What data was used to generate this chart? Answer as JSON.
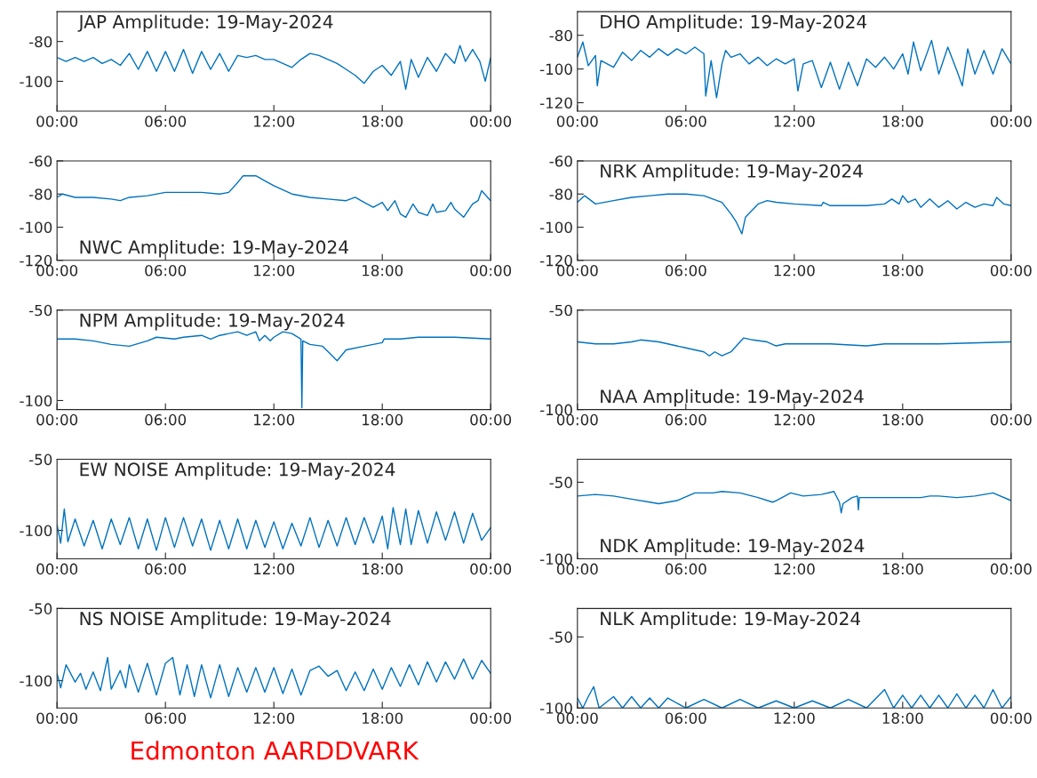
{
  "chart_data": [
    {
      "type": "line",
      "title": "JAP Amplitude: 19-May-2024",
      "xlim": [
        0,
        24
      ],
      "xticks": [
        {
          "value": 0,
          "label": "00:00"
        },
        {
          "value": 6,
          "label": "06:00"
        },
        {
          "value": 12,
          "label": "12:00"
        },
        {
          "value": 18,
          "label": "18:00"
        },
        {
          "value": 24,
          "label": "00:00"
        }
      ],
      "ylim": [
        -115,
        -65
      ],
      "yticks": [
        -100,
        -80
      ],
      "series": [
        {
          "color": "#0072bd",
          "x": [
            0,
            0.5,
            1,
            1.5,
            2,
            2.5,
            3,
            3.5,
            4,
            4.5,
            5,
            5.5,
            6,
            6.5,
            7,
            7.5,
            8,
            8.5,
            9,
            9.5,
            10,
            10.5,
            11,
            11.5,
            12,
            12.5,
            13,
            13.5,
            14,
            14.5,
            15,
            15.5,
            16,
            16.5,
            17,
            17.5,
            18,
            18.5,
            19,
            19.3,
            19.6,
            20,
            20.5,
            21,
            21.5,
            22,
            22.3,
            22.6,
            23,
            23.4,
            23.7,
            24
          ],
          "values": [
            -88,
            -90,
            -88,
            -90,
            -88,
            -91,
            -89,
            -92,
            -86,
            -94,
            -85,
            -95,
            -85,
            -95,
            -84,
            -96,
            -85,
            -94,
            -86,
            -95,
            -87,
            -88,
            -87,
            -89,
            -89,
            -91,
            -93,
            -89,
            -86,
            -87,
            -89,
            -91,
            -94,
            -97,
            -101,
            -95,
            -92,
            -97,
            -90,
            -104,
            -89,
            -98,
            -88,
            -95,
            -86,
            -91,
            -82,
            -90,
            -84,
            -90,
            -100,
            -88
          ]
        }
      ]
    },
    {
      "type": "line",
      "title": "DHO Amplitude: 19-May-2024",
      "xlim": [
        0,
        24
      ],
      "xticks": [
        {
          "value": 0,
          "label": "00:00"
        },
        {
          "value": 6,
          "label": "06:00"
        },
        {
          "value": 12,
          "label": "12:00"
        },
        {
          "value": 18,
          "label": "18:00"
        },
        {
          "value": 24,
          "label": "00:00"
        }
      ],
      "ylim": [
        -125,
        -66
      ],
      "yticks": [
        -120,
        -100,
        -80
      ],
      "series": [
        {
          "color": "#0072bd",
          "x": [
            0,
            0.3,
            0.6,
            1,
            1.1,
            1.3,
            2,
            2.5,
            3,
            3.5,
            4,
            4.5,
            5,
            5.5,
            6,
            6.5,
            7,
            7.1,
            7.4,
            7.7,
            8,
            8.2,
            8.5,
            9,
            9.5,
            10,
            10.5,
            11,
            11.5,
            12,
            12.2,
            12.5,
            13,
            13.5,
            14,
            14.5,
            15,
            15.5,
            16,
            16.5,
            17,
            17.5,
            18,
            18.3,
            18.6,
            19,
            19.6,
            20,
            20.5,
            21,
            21.3,
            21.6,
            22,
            22.5,
            23,
            23.5,
            24
          ],
          "values": [
            -93,
            -84,
            -98,
            -92,
            -110,
            -95,
            -99,
            -90,
            -95,
            -89,
            -93,
            -88,
            -92,
            -88,
            -91,
            -87,
            -91,
            -116,
            -95,
            -117,
            -97,
            -89,
            -93,
            -91,
            -97,
            -93,
            -98,
            -94,
            -97,
            -94,
            -113,
            -97,
            -95,
            -111,
            -96,
            -112,
            -96,
            -110,
            -94,
            -99,
            -93,
            -100,
            -91,
            -103,
            -84,
            -101,
            -83,
            -103,
            -87,
            -101,
            -110,
            -88,
            -103,
            -89,
            -103,
            -88,
            -97
          ]
        }
      ]
    },
    {
      "type": "line",
      "title": "NWC Amplitude: 19-May-2024",
      "xlim": [
        0,
        24
      ],
      "xticks": [
        {
          "value": 0,
          "label": "00:00"
        },
        {
          "value": 6,
          "label": "06:00"
        },
        {
          "value": 12,
          "label": "12:00"
        },
        {
          "value": 18,
          "label": "18:00"
        },
        {
          "value": 24,
          "label": "00:00"
        }
      ],
      "ylim": [
        -120,
        -60
      ],
      "yticks": [
        -120,
        -100,
        -80,
        -60
      ],
      "series": [
        {
          "color": "#0072bd",
          "x": [
            0,
            0.3,
            1,
            2,
            3,
            3.5,
            4,
            5,
            6,
            7,
            8,
            9,
            9.5,
            10,
            10.3,
            11,
            11.5,
            12,
            13,
            14,
            15,
            16,
            16.5,
            17,
            17.5,
            18,
            18.3,
            18.7,
            19,
            19.3,
            19.7,
            20,
            20.5,
            20.8,
            21,
            21.5,
            21.8,
            22,
            22.5,
            23,
            23.3,
            23.5,
            24
          ],
          "values": [
            -82,
            -80,
            -82,
            -82,
            -83,
            -84,
            -82,
            -81,
            -79,
            -79,
            -79,
            -80,
            -79,
            -73,
            -69,
            -69,
            -72,
            -75,
            -80,
            -82,
            -83,
            -84,
            -82,
            -85,
            -88,
            -85,
            -90,
            -84,
            -92,
            -94,
            -86,
            -91,
            -93,
            -86,
            -91,
            -90,
            -85,
            -89,
            -94,
            -86,
            -84,
            -78,
            -84
          ]
        }
      ]
    },
    {
      "type": "line",
      "title": "NRK Amplitude: 19-May-2024",
      "xlim": [
        0,
        24
      ],
      "xticks": [
        {
          "value": 0,
          "label": "00:00"
        },
        {
          "value": 6,
          "label": "06:00"
        },
        {
          "value": 12,
          "label": "12:00"
        },
        {
          "value": 18,
          "label": "18:00"
        },
        {
          "value": 24,
          "label": "00:00"
        }
      ],
      "ylim": [
        -120,
        -60
      ],
      "yticks": [
        -120,
        -100,
        -80,
        -60
      ],
      "series": [
        {
          "color": "#0072bd",
          "x": [
            0,
            0.4,
            1,
            2,
            3,
            4,
            5,
            6,
            7,
            8,
            8.5,
            8.8,
            9.1,
            9.3,
            10,
            10.5,
            11,
            12,
            13.5,
            13.6,
            14,
            15,
            16,
            17,
            17.4,
            17.8,
            18,
            18.3,
            18.7,
            19,
            19.5,
            20,
            20.5,
            21,
            21.5,
            22,
            22.5,
            23,
            23.2,
            23.6,
            24
          ],
          "values": [
            -85,
            -81,
            -86,
            -84,
            -82,
            -81,
            -80,
            -80,
            -81,
            -85,
            -92,
            -97,
            -104,
            -94,
            -86,
            -84,
            -85,
            -86,
            -87,
            -85,
            -87,
            -87,
            -87,
            -86,
            -83,
            -86,
            -81,
            -85,
            -83,
            -88,
            -83,
            -88,
            -84,
            -89,
            -85,
            -88,
            -86,
            -87,
            -82,
            -86,
            -87
          ]
        }
      ]
    },
    {
      "type": "line",
      "title": "NPM Amplitude: 19-May-2024",
      "xlim": [
        0,
        24
      ],
      "xticks": [
        {
          "value": 0,
          "label": "00:00"
        },
        {
          "value": 6,
          "label": "06:00"
        },
        {
          "value": 12,
          "label": "12:00"
        },
        {
          "value": 18,
          "label": "18:00"
        },
        {
          "value": 24,
          "label": "00:00"
        }
      ],
      "ylim": [
        -105,
        -50
      ],
      "yticks": [
        -100,
        -50
      ],
      "series": [
        {
          "color": "#0072bd",
          "x": [
            0,
            1,
            2,
            3,
            4,
            5,
            5.5,
            6.5,
            7,
            8,
            8.5,
            9,
            10,
            10.5,
            11,
            11.2,
            11.5,
            11.8,
            12,
            12.5,
            13,
            13.5,
            13.55,
            13.6,
            14,
            14.7,
            15.2,
            15.5,
            16,
            17,
            18,
            18.1,
            19,
            20,
            22,
            24
          ],
          "values": [
            -66,
            -66,
            -67,
            -69,
            -70,
            -67,
            -65,
            -66,
            -65,
            -64,
            -66,
            -64,
            -62,
            -64,
            -62,
            -67,
            -64,
            -67,
            -65,
            -62,
            -63,
            -66,
            -104,
            -67,
            -69,
            -70,
            -75,
            -78,
            -72,
            -70,
            -68,
            -66,
            -66,
            -65,
            -65,
            -66
          ]
        }
      ]
    },
    {
      "type": "line",
      "title": "NAA Amplitude: 19-May-2024",
      "xlim": [
        0,
        24
      ],
      "xticks": [
        {
          "value": 0,
          "label": "00:00"
        },
        {
          "value": 6,
          "label": "06:00"
        },
        {
          "value": 12,
          "label": "12:00"
        },
        {
          "value": 18,
          "label": "18:00"
        },
        {
          "value": 24,
          "label": "00:00"
        }
      ],
      "ylim": [
        -100,
        -50
      ],
      "yticks": [
        -100,
        -50
      ],
      "series": [
        {
          "color": "#0072bd",
          "x": [
            0,
            1,
            2,
            3,
            3.5,
            4.5,
            5.5,
            6,
            6.5,
            7,
            7.3,
            7.6,
            8,
            8.5,
            8.8,
            9.2,
            9.7,
            10.5,
            11,
            11.5,
            13,
            14,
            16,
            17,
            20,
            24
          ],
          "values": [
            -66,
            -67,
            -67,
            -66,
            -65,
            -66,
            -68,
            -69,
            -70,
            -71,
            -73,
            -71,
            -73,
            -71,
            -68,
            -64,
            -65,
            -66,
            -68,
            -67,
            -67,
            -67,
            -68,
            -67,
            -67,
            -66
          ]
        }
      ]
    },
    {
      "type": "line",
      "title": "EW NOISE Amplitude: 19-May-2024",
      "xlim": [
        0,
        24
      ],
      "xticks": [
        {
          "value": 0,
          "label": "00:00"
        },
        {
          "value": 6,
          "label": "06:00"
        },
        {
          "value": 12,
          "label": "12:00"
        },
        {
          "value": 18,
          "label": "18:00"
        },
        {
          "value": 24,
          "label": "00:00"
        }
      ],
      "ylim": [
        -120,
        -50
      ],
      "yticks": [
        -100,
        -50
      ],
      "series": [
        {
          "color": "#0072bd",
          "x": [
            0,
            0.2,
            0.4,
            0.6,
            1,
            1.5,
            2,
            2.5,
            3,
            3.5,
            4,
            4.5,
            5,
            5.5,
            6,
            6.5,
            7,
            7.5,
            8,
            8.5,
            9,
            9.5,
            10,
            10.5,
            11,
            11.5,
            12,
            12.5,
            13,
            13.5,
            14,
            14.5,
            15,
            15.5,
            16,
            16.5,
            17,
            17.5,
            18,
            18.3,
            18.6,
            19,
            19.3,
            19.6,
            20,
            20.5,
            21,
            21.5,
            22,
            22.5,
            23,
            23.5,
            24
          ],
          "values": [
            -96,
            -109,
            -85,
            -108,
            -92,
            -111,
            -93,
            -113,
            -92,
            -110,
            -91,
            -113,
            -92,
            -114,
            -91,
            -112,
            -91,
            -111,
            -92,
            -114,
            -93,
            -113,
            -92,
            -113,
            -93,
            -112,
            -94,
            -113,
            -95,
            -111,
            -91,
            -112,
            -93,
            -111,
            -91,
            -110,
            -91,
            -109,
            -90,
            -113,
            -84,
            -110,
            -85,
            -110,
            -86,
            -109,
            -87,
            -107,
            -87,
            -109,
            -88,
            -107,
            -98
          ]
        }
      ]
    },
    {
      "type": "line",
      "title": "NDK Amplitude: 19-May-2024",
      "xlim": [
        0,
        24
      ],
      "xticks": [
        {
          "value": 0,
          "label": "00:00"
        },
        {
          "value": 6,
          "label": "06:00"
        },
        {
          "value": 12,
          "label": "12:00"
        },
        {
          "value": 18,
          "label": "18:00"
        },
        {
          "value": 24,
          "label": "00:00"
        }
      ],
      "ylim": [
        -100,
        -35
      ],
      "yticks": [
        -100,
        -50
      ],
      "series": [
        {
          "color": "#0072bd",
          "x": [
            0,
            1,
            2,
            3,
            4,
            4.5,
            5.5,
            6.5,
            7.5,
            8,
            9,
            10,
            10.8,
            11,
            11.8,
            12.5,
            13.5,
            14.2,
            14.5,
            14.6,
            14.7,
            15.2,
            15.5,
            15.55,
            15.6,
            17,
            19,
            19.5,
            20,
            21,
            22,
            23,
            24
          ],
          "values": [
            -59,
            -58,
            -59,
            -61,
            -63,
            -64,
            -62,
            -57,
            -57,
            -56,
            -57,
            -60,
            -63,
            -62,
            -57,
            -59,
            -58,
            -56,
            -63,
            -70,
            -64,
            -60,
            -59,
            -68,
            -60,
            -60,
            -60,
            -59,
            -59,
            -60,
            -59,
            -57,
            -62
          ]
        }
      ]
    },
    {
      "type": "line",
      "title": "NS NOISE Amplitude: 19-May-2024",
      "xlim": [
        0,
        24
      ],
      "xticks": [
        {
          "value": 0,
          "label": "00:00"
        },
        {
          "value": 6,
          "label": "06:00"
        },
        {
          "value": 12,
          "label": "12:00"
        },
        {
          "value": 18,
          "label": "18:00"
        },
        {
          "value": 24,
          "label": "00:00"
        }
      ],
      "ylim": [
        -119,
        -50
      ],
      "yticks": [
        -100,
        -50
      ],
      "annotations": [
        "Edmonton AARDDVARK"
      ],
      "series": [
        {
          "color": "#0072bd",
          "x": [
            0,
            0.2,
            0.5,
            1,
            1.3,
            1.6,
            2,
            2.4,
            2.8,
            3,
            3.5,
            3.8,
            4,
            4.5,
            5,
            5.5,
            6,
            6.4,
            6.8,
            7.2,
            7.6,
            8,
            8.5,
            9,
            9.5,
            10,
            10.5,
            11,
            11.5,
            12,
            12.5,
            13,
            13.5,
            14,
            14.5,
            15,
            15.5,
            16,
            16.5,
            17,
            17.5,
            18,
            18.5,
            19,
            19.5,
            20,
            20.5,
            21,
            21.5,
            22,
            22.5,
            23,
            23.5,
            24
          ],
          "values": [
            -95,
            -105,
            -89,
            -101,
            -95,
            -106,
            -94,
            -107,
            -84,
            -106,
            -93,
            -105,
            -89,
            -108,
            -88,
            -110,
            -88,
            -84,
            -110,
            -89,
            -111,
            -89,
            -112,
            -89,
            -111,
            -91,
            -108,
            -91,
            -108,
            -91,
            -109,
            -92,
            -110,
            -93,
            -90,
            -97,
            -93,
            -107,
            -94,
            -107,
            -92,
            -106,
            -91,
            -104,
            -89,
            -103,
            -87,
            -101,
            -87,
            -99,
            -85,
            -99,
            -86,
            -95
          ]
        }
      ]
    },
    {
      "type": "line",
      "title": "NLK Amplitude: 19-May-2024",
      "xlim": [
        0,
        24
      ],
      "xticks": [
        {
          "value": 0,
          "label": "00:00"
        },
        {
          "value": 6,
          "label": "06:00"
        },
        {
          "value": 12,
          "label": "12:00"
        },
        {
          "value": 18,
          "label": "18:00"
        },
        {
          "value": 24,
          "label": "00:00"
        }
      ],
      "ylim": [
        -100,
        -30
      ],
      "yticks": [
        -100,
        -50
      ],
      "series": [
        {
          "color": "#0072bd",
          "x": [
            0,
            0.3,
            0.6,
            0.9,
            1.2,
            2,
            2.5,
            3,
            3.5,
            4,
            4.5,
            5,
            6,
            7,
            8,
            9,
            10,
            11,
            12,
            13,
            14,
            15,
            16,
            17,
            17.5,
            18,
            18.5,
            19,
            19.5,
            20,
            20.5,
            21,
            21.5,
            22,
            22.5,
            23,
            23.5,
            24
          ],
          "values": [
            -93,
            -100,
            -92,
            -85,
            -100,
            -92,
            -100,
            -92,
            -100,
            -93,
            -100,
            -93,
            -100,
            -94,
            -100,
            -94,
            -100,
            -95,
            -100,
            -95,
            -100,
            -94,
            -100,
            -87,
            -100,
            -91,
            -100,
            -91,
            -100,
            -91,
            -100,
            -90,
            -100,
            -91,
            -100,
            -87,
            -100,
            -92
          ]
        }
      ]
    }
  ]
}
